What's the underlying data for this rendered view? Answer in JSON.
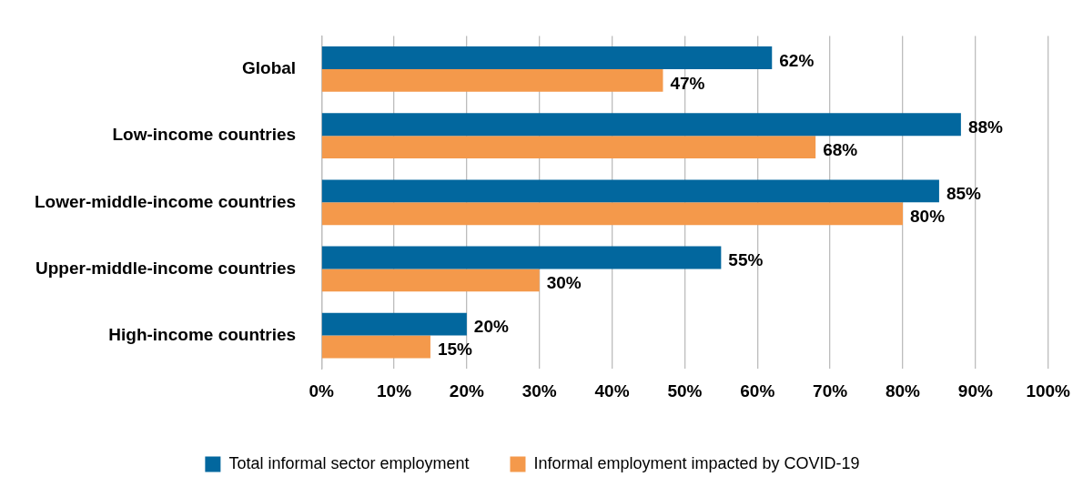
{
  "chart_data": {
    "type": "bar",
    "orientation": "horizontal",
    "categories": [
      "Global",
      "Low-income countries",
      "Lower-middle-income countries",
      "Upper-middle-income countries",
      "High-income countries"
    ],
    "series": [
      {
        "name": "Total informal sector employment",
        "color": "#02679e",
        "values": [
          62,
          88,
          85,
          55,
          20
        ],
        "value_labels": [
          "62%",
          "88%",
          "85%",
          "55%",
          "20%"
        ]
      },
      {
        "name": "Informal employment impacted by COVID-19",
        "color": "#f4994b",
        "values": [
          47,
          68,
          80,
          30,
          15
        ],
        "value_labels": [
          "47%",
          "68%",
          "80%",
          "30%",
          "15%"
        ]
      }
    ],
    "xlim": [
      0,
      100
    ],
    "xticks": [
      {
        "value": 0,
        "label": "0%"
      },
      {
        "value": 10,
        "label": "10%"
      },
      {
        "value": 20,
        "label": "20%"
      },
      {
        "value": 30,
        "label": "30%"
      },
      {
        "value": 40,
        "label": "40%"
      },
      {
        "value": 50,
        "label": "50%"
      },
      {
        "value": 60,
        "label": "60%"
      },
      {
        "value": 70,
        "label": "70%"
      },
      {
        "value": 80,
        "label": "80%"
      },
      {
        "value": 90,
        "label": "90%"
      },
      {
        "value": 100,
        "label": "100%"
      }
    ],
    "grid": "x",
    "legend": "bottom"
  }
}
